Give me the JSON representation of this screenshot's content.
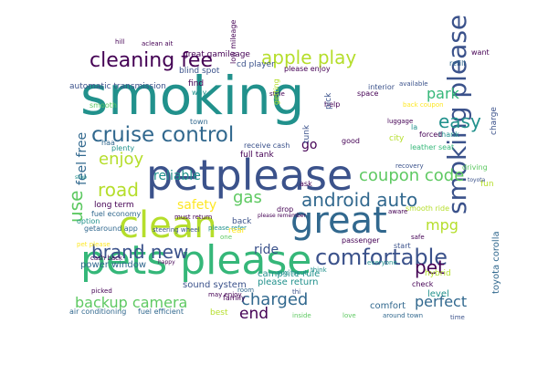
{
  "palette": {
    "dark_purple": "#440154",
    "indigo": "#3b528b",
    "deep_blue": "#31688e",
    "teal": "#21918c",
    "sea_green": "#35b779",
    "green": "#5ec962",
    "lime": "#b5de2b",
    "yellow": "#fde725"
  },
  "words": [
    {
      "text": "smoking",
      "color": "#21918c"
    },
    {
      "text": "petplease",
      "color": "#3b528b"
    },
    {
      "text": "pets please",
      "color": "#35b779"
    },
    {
      "text": "clean",
      "color": "#b5de2b"
    },
    {
      "text": "great",
      "color": "#31688e"
    },
    {
      "text": "smoking please",
      "color": "#3b528b"
    },
    {
      "text": "cruise control",
      "color": "#31688e"
    },
    {
      "text": "cleaning fee",
      "color": "#440154"
    },
    {
      "text": "apple play",
      "color": "#b5de2b"
    },
    {
      "text": "brand new",
      "color": "#3b528b"
    },
    {
      "text": "comfortable",
      "color": "#3b528b"
    },
    {
      "text": "android auto",
      "color": "#31688e"
    },
    {
      "text": "coupon code",
      "color": "#5ec962"
    },
    {
      "text": "backup camera",
      "color": "#5ec962"
    },
    {
      "text": "charged",
      "color": "#31688e"
    },
    {
      "text": "enjoy",
      "color": "#b5de2b"
    },
    {
      "text": "pet",
      "color": "#440154"
    },
    {
      "text": "end",
      "color": "#440154"
    },
    {
      "text": "mpg",
      "color": "#b5de2b"
    },
    {
      "text": "park",
      "color": "#35b779"
    },
    {
      "text": "easy",
      "color": "#21918c"
    },
    {
      "text": "road",
      "color": "#b5de2b"
    },
    {
      "text": "use",
      "color": "#5ec962"
    },
    {
      "text": "perfect",
      "color": "#31688e"
    },
    {
      "text": "feel free",
      "color": "#31688e"
    },
    {
      "text": "ride",
      "color": "#3b528b"
    },
    {
      "text": "reliable",
      "color": "#21918c"
    },
    {
      "text": "safety",
      "color": "#fde725"
    },
    {
      "text": "gas",
      "color": "#5ec962"
    },
    {
      "text": "go",
      "color": "#440154"
    },
    {
      "text": "power window",
      "color": "#31688e"
    },
    {
      "text": "sound system",
      "color": "#3b528b"
    },
    {
      "text": "campsite rule",
      "color": "#21918c"
    },
    {
      "text": "please return",
      "color": "#21918c"
    },
    {
      "text": "comfort",
      "color": "#31688e"
    },
    {
      "text": "level",
      "color": "#21918c"
    },
    {
      "text": "toyota corolla",
      "color": "#31688e"
    },
    {
      "text": "driving",
      "color": "#5ec962"
    },
    {
      "text": "fun",
      "color": "#b5de2b"
    },
    {
      "text": "thank",
      "color": "#21918c"
    },
    {
      "text": "hybrid",
      "color": "#b5de2b"
    },
    {
      "text": "fuel efficient",
      "color": "#31688e"
    },
    {
      "text": "air conditioning",
      "color": "#31688e"
    },
    {
      "text": "around town",
      "color": "#31688e"
    },
    {
      "text": "inside",
      "color": "#5ec962"
    },
    {
      "text": "love",
      "color": "#5ec962"
    },
    {
      "text": "time",
      "color": "#3b528b"
    },
    {
      "text": "great gamileage",
      "color": "#440154"
    },
    {
      "text": "blind spot",
      "color": "#3b528b"
    },
    {
      "text": "cd player",
      "color": "#3b528b"
    },
    {
      "text": "please enjoy",
      "color": "#440154"
    },
    {
      "text": "automatic transmission",
      "color": "#3b528b"
    },
    {
      "text": "refill",
      "color": "#31688e"
    },
    {
      "text": "want",
      "color": "#440154"
    },
    {
      "text": "available",
      "color": "#3b528b"
    },
    {
      "text": "back coupon",
      "color": "#fde725"
    },
    {
      "text": "leather seat",
      "color": "#35b779"
    },
    {
      "text": "forced",
      "color": "#440154"
    },
    {
      "text": "charge",
      "color": "#3b528b"
    },
    {
      "text": "full tank",
      "color": "#440154"
    },
    {
      "text": "receive cash",
      "color": "#3b528b"
    },
    {
      "text": "long term",
      "color": "#440154"
    },
    {
      "text": "fuel economy",
      "color": "#31688e"
    },
    {
      "text": "getaround app",
      "color": "#31688e"
    },
    {
      "text": "steering wheel",
      "color": "#3b528b"
    },
    {
      "text": "cash back",
      "color": "#440154"
    },
    {
      "text": "picked",
      "color": "#440154"
    },
    {
      "text": "family",
      "color": "#440154"
    },
    {
      "text": "room",
      "color": "#31688e"
    },
    {
      "text": "passenger",
      "color": "#440154"
    },
    {
      "text": "everyone",
      "color": "#21918c"
    },
    {
      "text": "start",
      "color": "#3b528b"
    },
    {
      "text": "aux input",
      "color": "#21918c"
    },
    {
      "text": "think",
      "color": "#21918c"
    },
    {
      "text": "check",
      "color": "#440154"
    },
    {
      "text": "plenty",
      "color": "#21918c"
    },
    {
      "text": "haa",
      "color": "#31688e"
    },
    {
      "text": "must return",
      "color": "#440154"
    },
    {
      "text": "drop",
      "color": "#440154"
    },
    {
      "text": "ask",
      "color": "#440154"
    },
    {
      "text": "back",
      "color": "#3b528b"
    },
    {
      "text": "low mileage",
      "color": "#440154"
    },
    {
      "text": "way",
      "color": "#21918c"
    },
    {
      "text": "find",
      "color": "#440154"
    },
    {
      "text": "smooth",
      "color": "#5ec962"
    },
    {
      "text": "style",
      "color": "#440154"
    },
    {
      "text": "space",
      "color": "#440154"
    },
    {
      "text": "help",
      "color": "#440154"
    },
    {
      "text": "getting",
      "color": "#b5de2b"
    },
    {
      "text": "interior",
      "color": "#3b528b"
    },
    {
      "text": "pick",
      "color": "#3b528b"
    },
    {
      "text": "city",
      "color": "#b5de2b"
    },
    {
      "text": "la",
      "color": "#21918c"
    },
    {
      "text": "good",
      "color": "#440154"
    },
    {
      "text": "tunk",
      "color": "#3b528b"
    },
    {
      "text": "town",
      "color": "#31688e"
    },
    {
      "text": "hill",
      "color": "#440154"
    },
    {
      "text": "aclean ait",
      "color": "#440154"
    },
    {
      "text": "luggage",
      "color": "#440154"
    },
    {
      "text": "smooth ride",
      "color": "#b5de2b"
    },
    {
      "text": "may enjoy",
      "color": "#440154"
    },
    {
      "text": "please refer",
      "color": "#21918c"
    },
    {
      "text": "rear",
      "color": "#fde725"
    },
    {
      "text": "pet please",
      "color": "#fde725"
    },
    {
      "text": "option",
      "color": "#21918c"
    },
    {
      "text": "best",
      "color": "#b5de2b"
    },
    {
      "text": "one",
      "color": "#5ec962"
    },
    {
      "text": "happy",
      "color": "#440154"
    },
    {
      "text": "safe",
      "color": "#440154"
    },
    {
      "text": "aware",
      "color": "#440154"
    },
    {
      "text": "toyota",
      "color": "#3b528b"
    },
    {
      "text": "recovery",
      "color": "#3b528b"
    },
    {
      "text": "stop",
      "color": "#21918c"
    },
    {
      "text": "please remember",
      "color": "#440154"
    },
    {
      "text": "thi",
      "color": "#3b528b"
    },
    {
      "text": "igreat",
      "color": "#440154"
    }
  ]
}
